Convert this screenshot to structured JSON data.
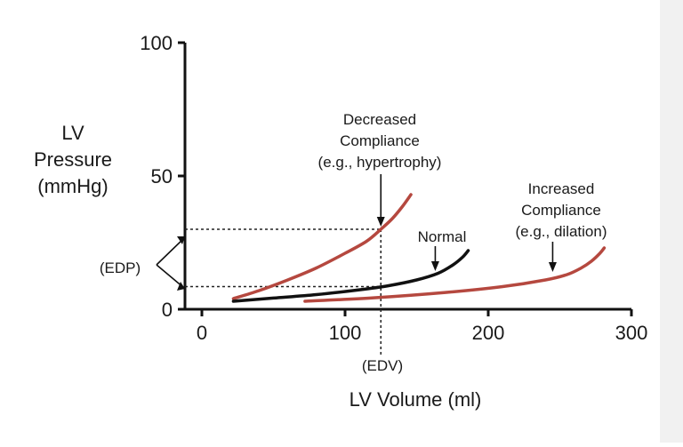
{
  "chart_data": {
    "type": "line",
    "title": "",
    "xlabel": "LV Volume (ml)",
    "ylabel_lines": [
      "LV",
      "Pressure",
      "(mmHg)"
    ],
    "xlim": [
      0,
      300
    ],
    "ylim": [
      0,
      100
    ],
    "x_ticks": [
      0,
      100,
      200,
      300
    ],
    "y_ticks": [
      0,
      50,
      100
    ],
    "grid": false,
    "series": [
      {
        "name": "Decreased Compliance",
        "color": "#b5483f",
        "x": [
          22,
          40,
          60,
          80,
          100,
          115,
          125,
          133,
          140,
          146
        ],
        "y": [
          4,
          7,
          11,
          15.5,
          21,
          25.5,
          30,
          34,
          38.5,
          43
        ]
      },
      {
        "name": "Normal",
        "color": "#111111",
        "x": [
          22,
          50,
          80,
          110,
          130,
          150,
          165,
          175,
          182,
          186
        ],
        "y": [
          3,
          4.2,
          5.5,
          7.3,
          8.8,
          11,
          13.5,
          16.5,
          19.5,
          22
        ]
      },
      {
        "name": "Increased Compliance",
        "color": "#b5483f",
        "x": [
          72,
          120,
          170,
          210,
          240,
          255,
          265,
          272,
          278,
          281
        ],
        "y": [
          3,
          4.3,
          6.3,
          8.5,
          11,
          13,
          15.5,
          18,
          21,
          23
        ]
      }
    ],
    "reference_lines": {
      "edv_x": 125,
      "edp_high": 30,
      "edp_low": 8.5
    },
    "annotations": {
      "decreased": [
        "Decreased",
        "Compliance",
        "(e.g., hypertrophy)"
      ],
      "normal": "Normal",
      "increased": [
        "Increased",
        "Compliance",
        "(e.g., dilation)"
      ],
      "edp": "(EDP)",
      "edv": "(EDV)"
    }
  }
}
